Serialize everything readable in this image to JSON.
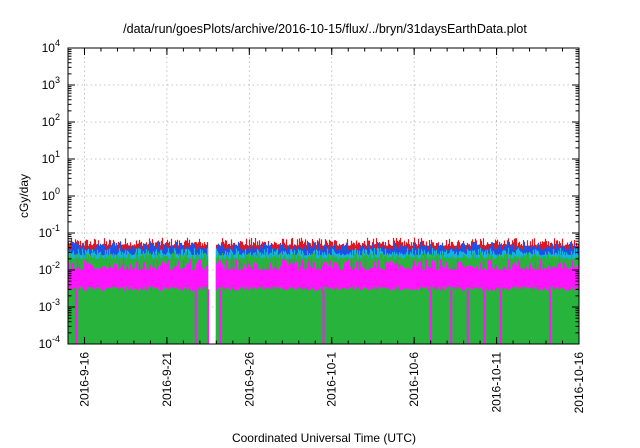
{
  "chart_data": {
    "type": "area",
    "title": "/data/run/goesPlots/archive/2016-10-15/flux/../bryn/31daysEarthData.plot",
    "xlabel": "Coordinated Universal Time (UTC)",
    "ylabel": "cGy/day",
    "y_scale": "log",
    "ylim": [
      0.0001,
      10000
    ],
    "xlim": [
      "2016-09-15",
      "2016-10-16"
    ],
    "grid": true,
    "x_ticks": [
      "2016-9-16",
      "2016-9-21",
      "2016-9-26",
      "2016-10-1",
      "2016-10-6",
      "2016-10-11",
      "2016-10-16"
    ],
    "y_tick_exponents": [
      "-4",
      "-3",
      "-2",
      "-1",
      "0",
      "1",
      "2",
      "3",
      "4"
    ],
    "y_tick_base": "10",
    "series": [
      {
        "color": "#e8141c",
        "typical": 0.045,
        "peak": 0.075,
        "low": 0.03
      },
      {
        "color": "#1e50e6",
        "typical": 0.035,
        "peak": 0.06,
        "low": 0.02
      },
      {
        "color": "#14b4dc",
        "typical": 0.025,
        "peak": 0.04,
        "low": 0.015
      },
      {
        "color": "#28b43c",
        "typical": 0.02,
        "peak": 0.03,
        "low": 0.012
      },
      {
        "color": "#ff14ff",
        "typical": 0.01,
        "peak": 0.02,
        "low": 0.003
      }
    ],
    "data_gaps": [
      [
        "2016-09-23T12:00",
        "2016-09-24T00:00"
      ]
    ],
    "dropout_dates": [
      "2016-09-15T12:00",
      "2016-09-22T18:00",
      "2016-09-23T12:00",
      "2016-09-24T06:00",
      "2016-09-30T12:00",
      "2016-10-07T00:00",
      "2016-10-08T06:00",
      "2016-10-09T06:00",
      "2016-10-10T06:00",
      "2016-10-11T06:00",
      "2016-10-14T06:00"
    ],
    "dropout_min": 0.0001
  }
}
